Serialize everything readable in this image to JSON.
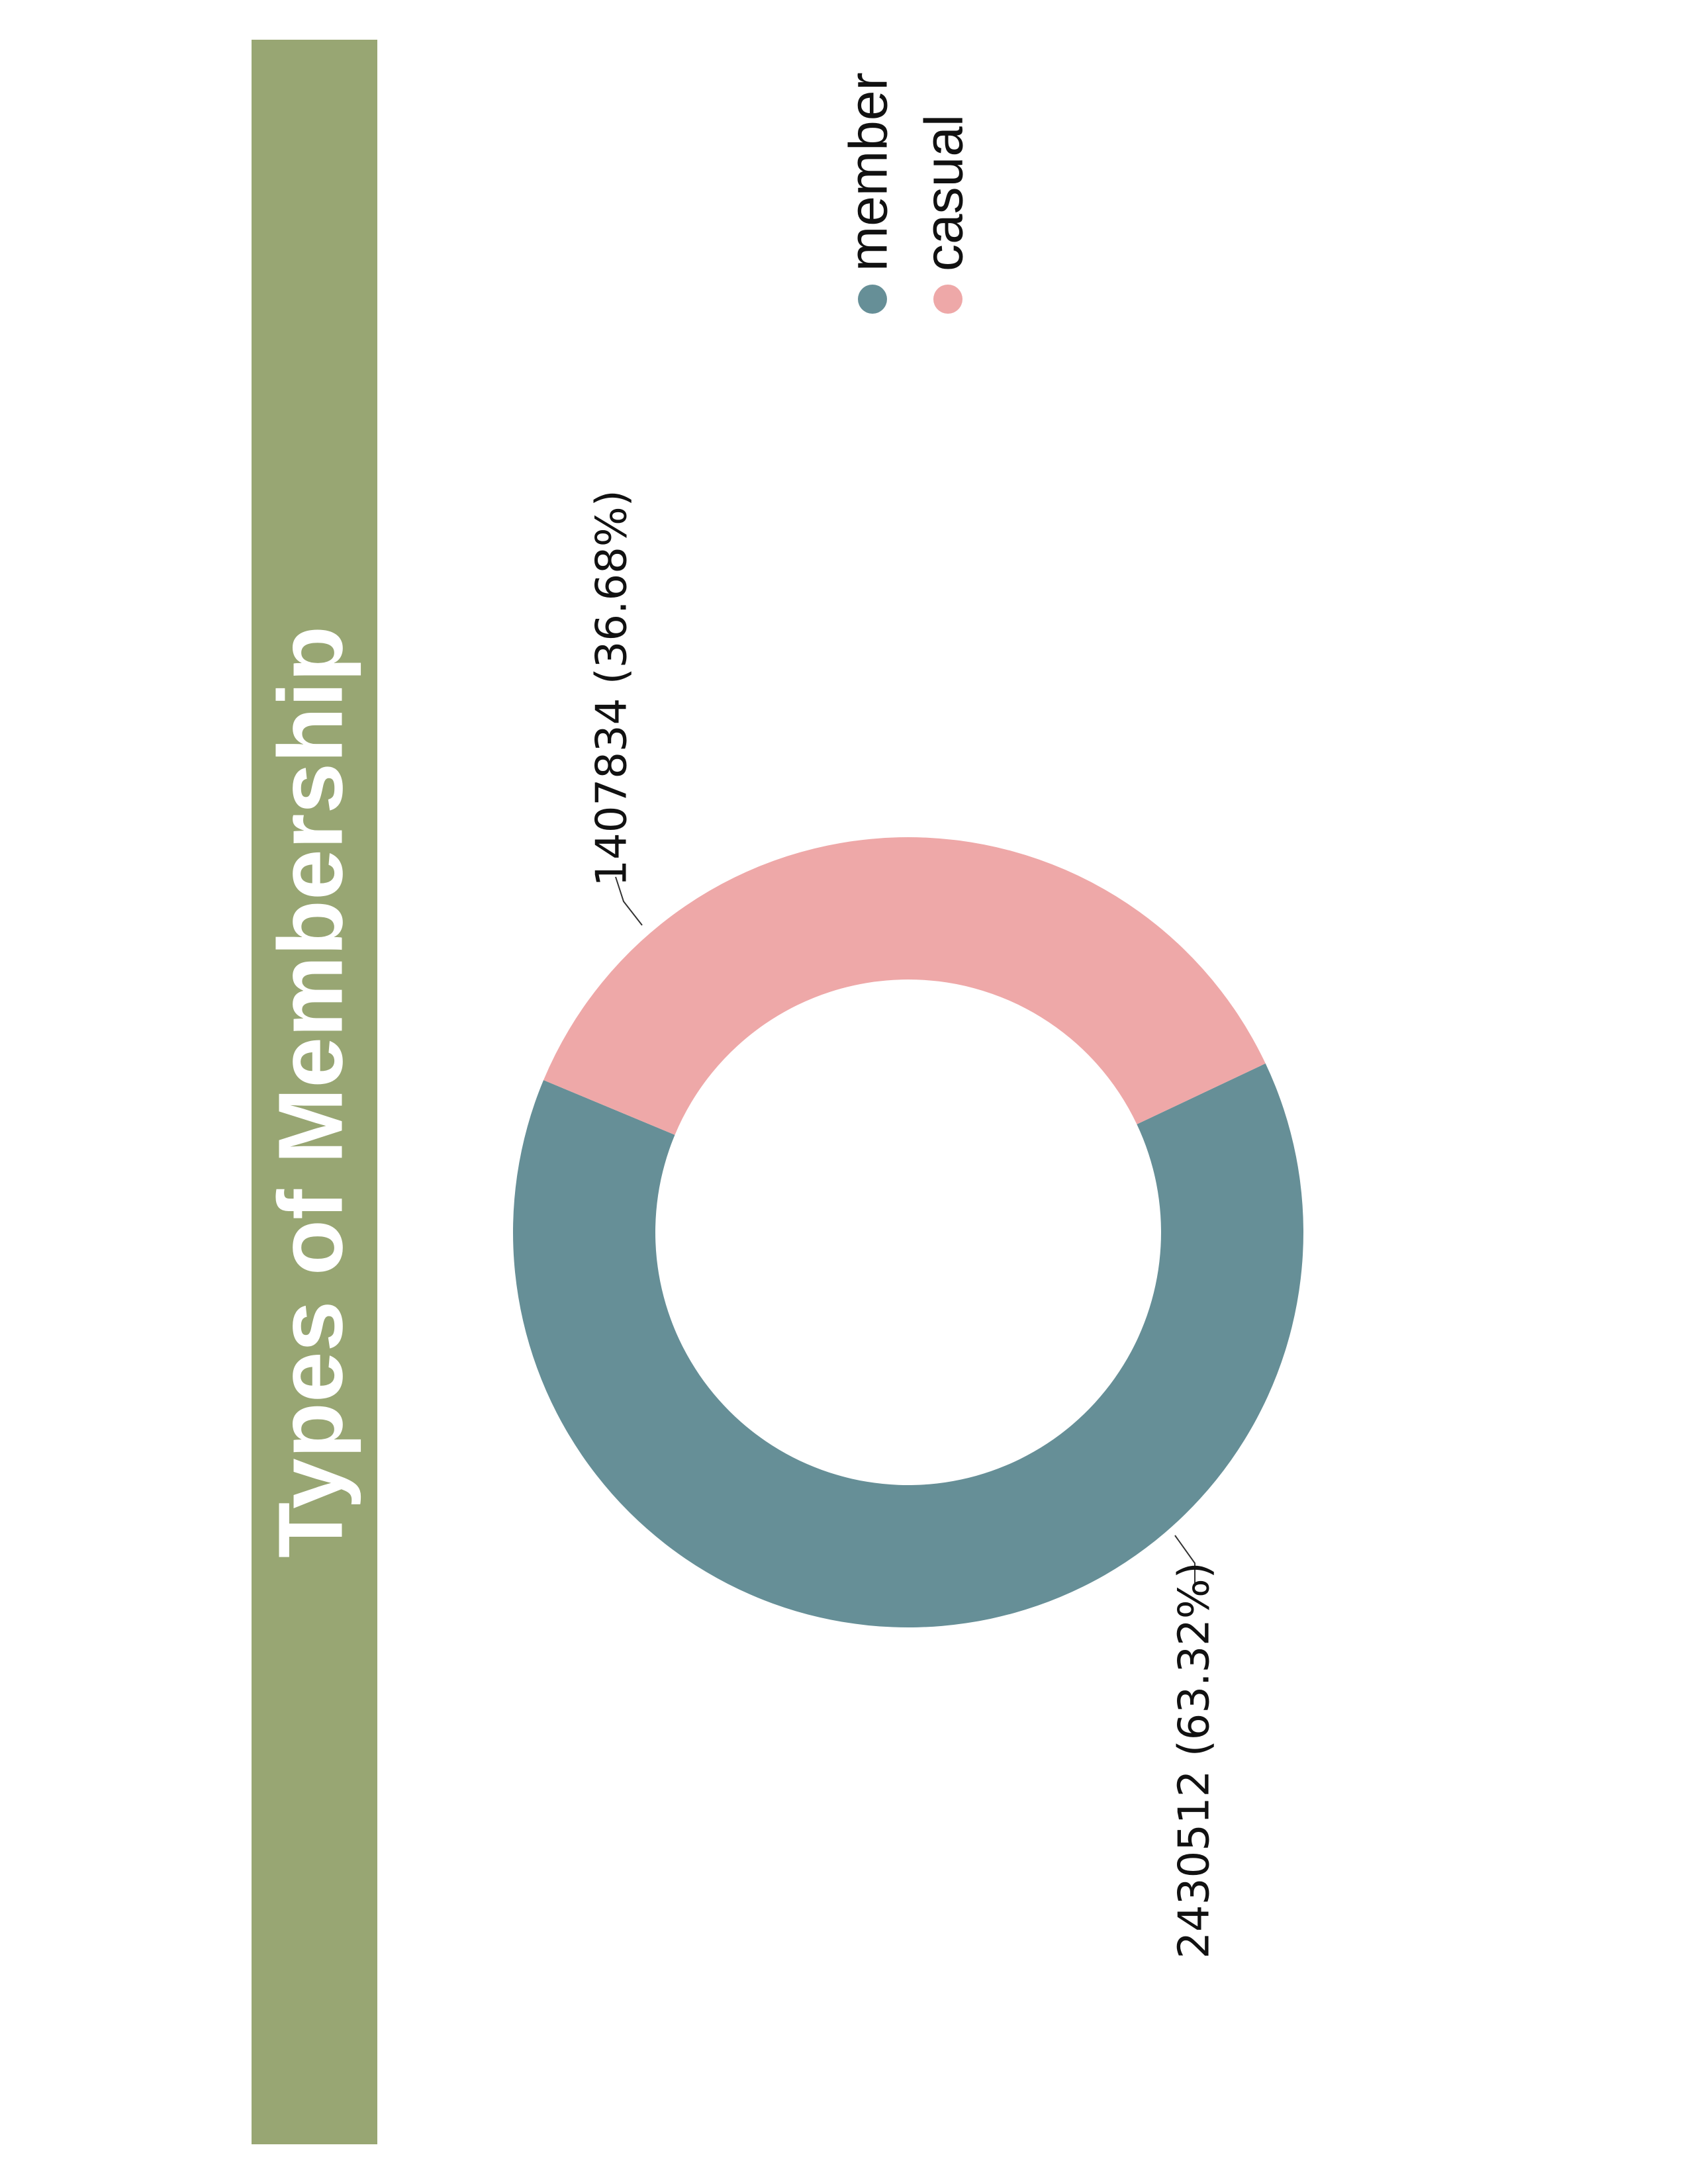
{
  "chart_data": {
    "type": "pie",
    "variant": "donut",
    "orientation": "rotated 90° counter-clockwise",
    "title": "Types of Membership",
    "series": [
      {
        "name": "member",
        "value": 2430512,
        "percent": 63.32,
        "color": "#668f97",
        "label": "2430512 (63.32%)"
      },
      {
        "name": "casual",
        "value": 1407834,
        "percent": 36.68,
        "color": "#eea8a8",
        "label": "1407834 (36.68%)"
      }
    ],
    "legend": {
      "position": "top-right",
      "items": [
        "member",
        "casual"
      ]
    }
  },
  "colors": {
    "title_bar": "#98a673",
    "title_text": "#ffffff",
    "leader_line": "#333333"
  }
}
